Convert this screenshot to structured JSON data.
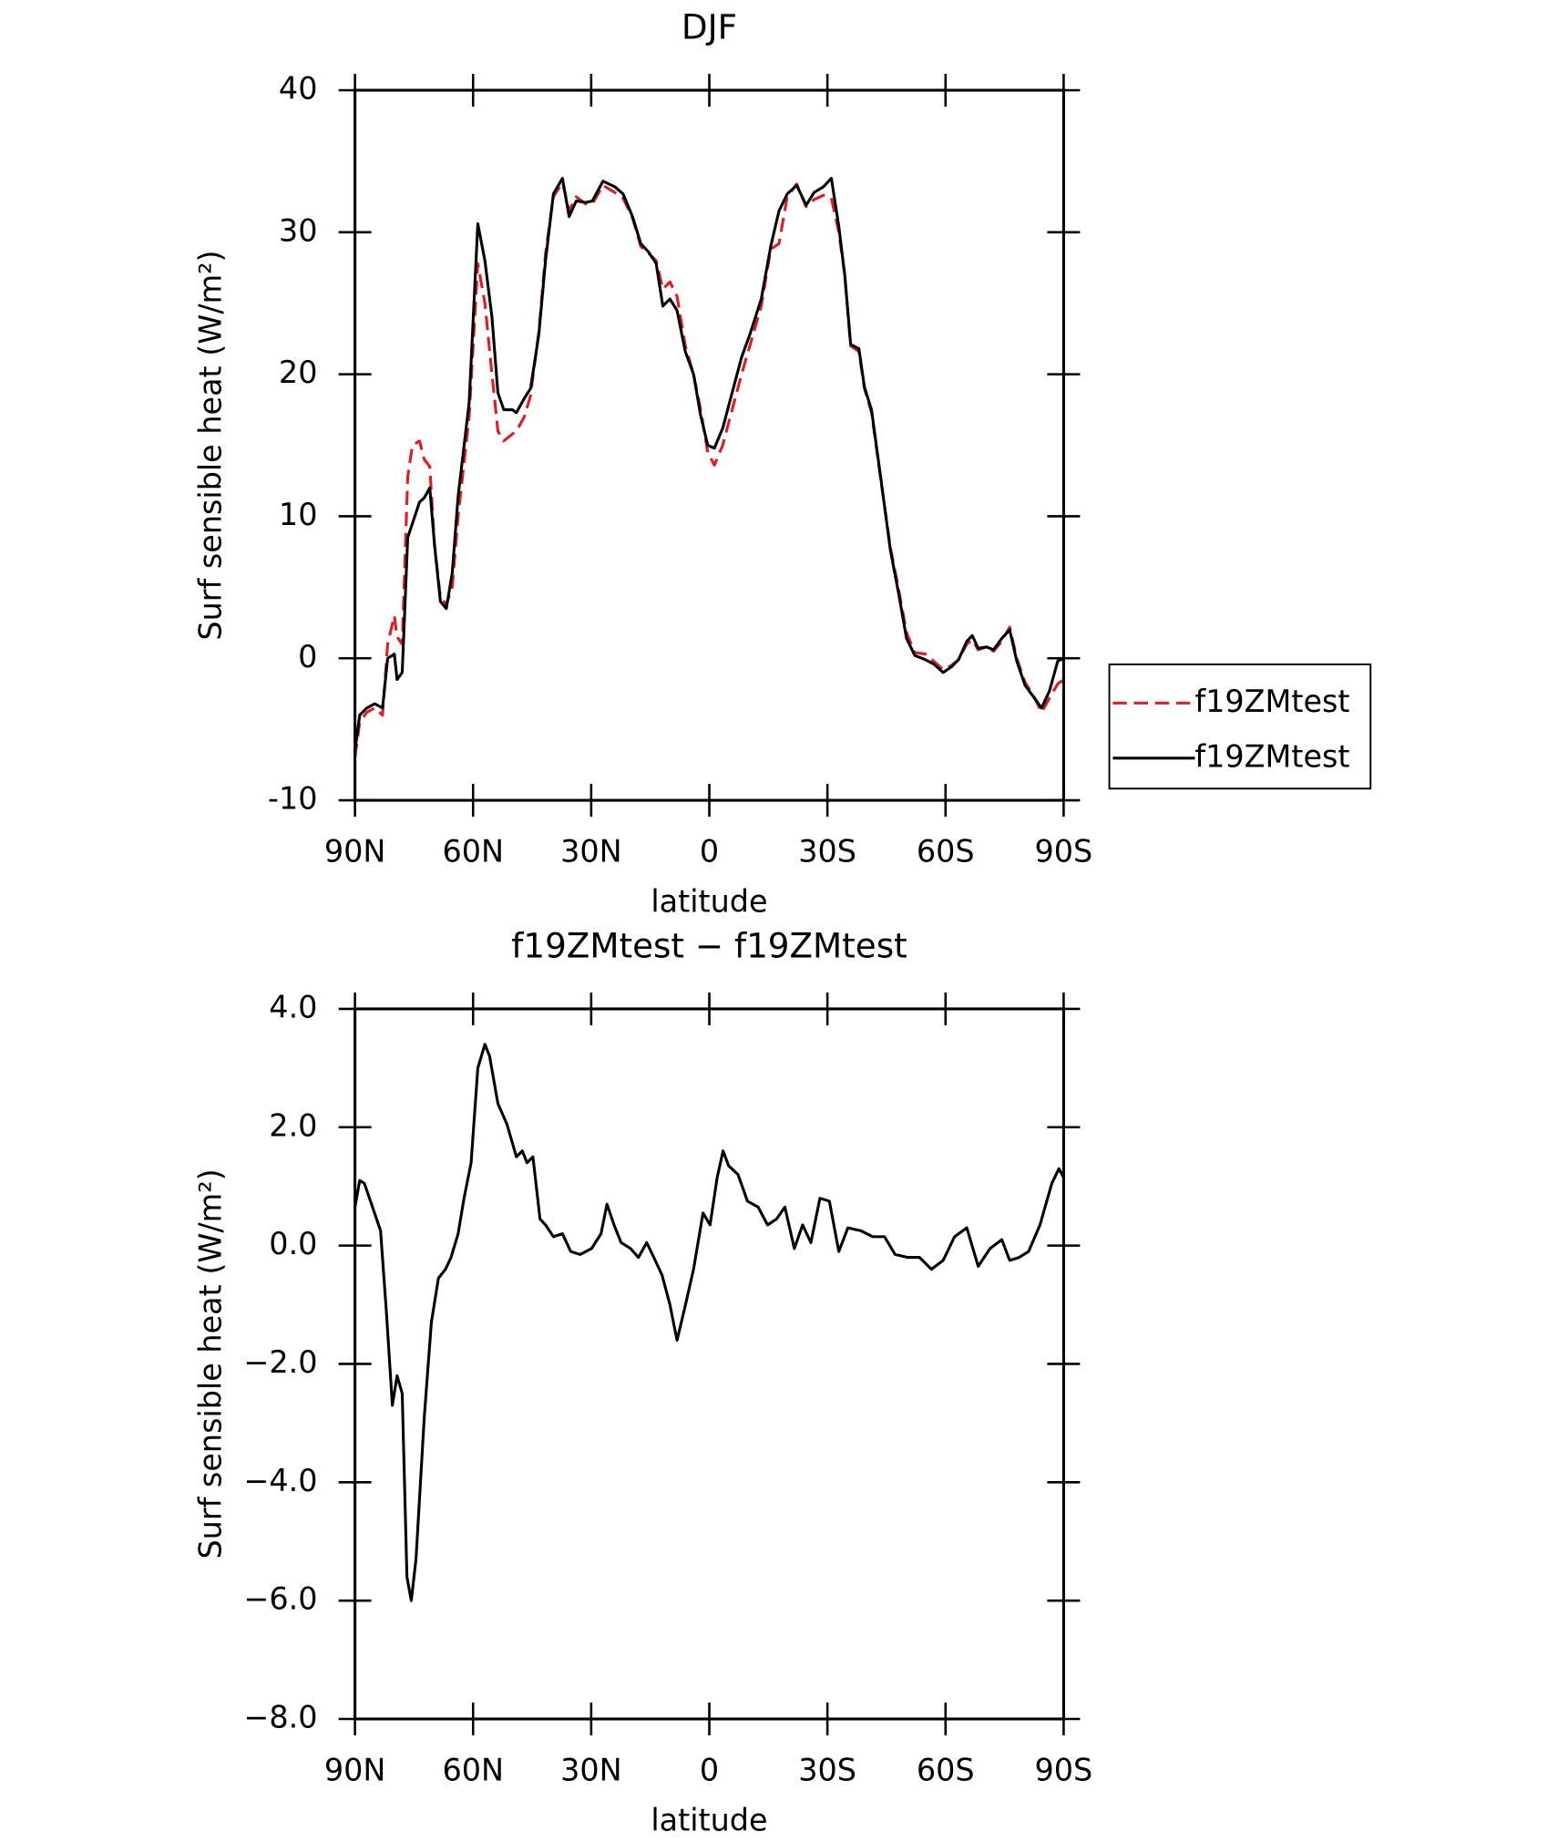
{
  "chart_data": [
    {
      "type": "line",
      "title": "DJF",
      "xlabel": "latitude",
      "ylabel": "Surf sensible heat (W/m²)",
      "x": [
        90,
        88.8,
        87,
        85,
        83,
        81.7,
        80,
        79.3,
        78,
        76.6,
        75.4,
        73.6,
        72.4,
        71,
        69.8,
        68.3,
        66.8,
        65.3,
        63.8,
        61,
        58.8,
        57,
        55.2,
        53.7,
        52.2,
        50,
        49,
        47,
        45.4,
        43.3,
        41.6,
        39.6,
        37.3,
        35.6,
        33.8,
        31.4,
        29.7,
        27,
        24,
        21.9,
        19.5,
        17.4,
        15.4,
        13.5,
        11.8,
        10,
        8.2,
        6.1,
        4,
        2.2,
        0.4,
        -1.3,
        -3.4,
        -5.8,
        -8.2,
        -10.3,
        -13.2,
        -15.6,
        -17.7,
        -19.8,
        -22.2,
        -24.6,
        -26.6,
        -29,
        -31,
        -32.9,
        -34.4,
        -35.9,
        -38,
        -39.4,
        -41.2,
        -43.6,
        -46,
        -48,
        -50.1,
        -52.2,
        -54.9,
        -57,
        -59.4,
        -61.5,
        -63.3,
        -65.4,
        -66.8,
        -68.3,
        -70.4,
        -72.2,
        -74.3,
        -76.3,
        -78.1,
        -80.2,
        -82.3,
        -84.4,
        -86.4,
        -88.5,
        -90
      ],
      "series": [
        {
          "name": "f19ZMtest",
          "color": "#e8191c",
          "dashed": true,
          "values": [
            -7,
            -4.5,
            -3.8,
            -3.5,
            -4,
            1,
            3,
            1.5,
            1,
            12.8,
            15,
            15.3,
            14,
            13.5,
            8,
            4.3,
            3.8,
            5,
            10,
            17,
            27.8,
            25,
            20,
            16,
            15.3,
            15.8,
            16,
            17,
            18.5,
            23,
            28.5,
            32.5,
            33.5,
            31.5,
            32.5,
            32,
            32,
            33.3,
            32.8,
            32.4,
            31,
            29,
            28.5,
            28,
            26,
            26.5,
            25.5,
            22,
            20,
            17.5,
            14.5,
            13.6,
            15,
            17.5,
            20,
            22,
            24.8,
            28.8,
            29.2,
            32.5,
            33.4,
            31.8,
            32.3,
            32.6,
            32.4,
            30,
            27,
            22,
            21.6,
            19,
            17.3,
            12.5,
            7.8,
            5,
            1.8,
            0.4,
            0.3,
            -0.2,
            -0.8,
            -0.5,
            -0.1,
            1,
            1.3,
            0.6,
            0.8,
            0.5,
            1.2,
            2.2,
            0,
            -1.7,
            -2.6,
            -3.8,
            -2.8,
            -1.8,
            -1.5
          ]
        },
        {
          "name": "f19ZMtest",
          "color": "#000000",
          "dashed": false,
          "values": [
            -6.5,
            -4,
            -3.5,
            -3.2,
            -3.5,
            0,
            0.3,
            -1.5,
            -1,
            8.5,
            9.5,
            11,
            11.3,
            12,
            8,
            4,
            3.5,
            6,
            11.4,
            18,
            30.6,
            28,
            24,
            18.7,
            17.5,
            17.5,
            17.3,
            18.3,
            19,
            22.8,
            28,
            32.7,
            33.8,
            31.1,
            32.2,
            32.1,
            32.2,
            33.6,
            33.2,
            32.7,
            31.1,
            29.2,
            28.6,
            27.8,
            24.8,
            25.3,
            24.5,
            21.6,
            20,
            17.1,
            15,
            14.8,
            16.2,
            18.7,
            21.2,
            22.8,
            25.3,
            29,
            31.5,
            32.7,
            33.3,
            31.9,
            32.8,
            33.2,
            33.8,
            30.4,
            27,
            22.1,
            21.8,
            19.1,
            17.5,
            12.6,
            7.6,
            4.7,
            1.4,
            0.2,
            -0.1,
            -0.4,
            -1,
            -0.6,
            -0.1,
            1.2,
            1.6,
            0.7,
            0.8,
            0.6,
            1.4,
            2,
            -0.2,
            -1.9,
            -2.7,
            -3.5,
            -2.3,
            -0.2,
            0
          ]
        }
      ],
      "xlim": [
        90,
        -90
      ],
      "xticks": [
        {
          "value": 90,
          "label": "90N"
        },
        {
          "value": 60,
          "label": "60N"
        },
        {
          "value": 30,
          "label": "30N"
        },
        0,
        {
          "value": -30,
          "label": "30S"
        },
        {
          "value": -60,
          "label": "60S"
        },
        {
          "value": -90,
          "label": "90S"
        }
      ],
      "ylim": [
        -10,
        40
      ],
      "yticks": [
        -10,
        0,
        10,
        20,
        30,
        40
      ],
      "legend": "outside-right"
    },
    {
      "type": "line",
      "title": "f19ZMtest − f19ZMtest",
      "xlabel": "latitude",
      "ylabel": "Surf sensible heat (W/m²)",
      "x": [
        90,
        88.8,
        87.6,
        85.8,
        83.5,
        82,
        80.5,
        79.3,
        78,
        76.8,
        75.7,
        74.5,
        72.4,
        70.6,
        68.8,
        67,
        65.6,
        63.8,
        62.3,
        60.5,
        58.8,
        57,
        55.8,
        53.7,
        51.4,
        49,
        47.5,
        46.3,
        44.8,
        43,
        41.6,
        39.6,
        37.3,
        35.2,
        32.8,
        29.9,
        27.5,
        26,
        24.2,
        22.4,
        20,
        18,
        15.9,
        14.1,
        12,
        10,
        8.2,
        6.4,
        4,
        1.6,
        -0.2,
        -2,
        -3.5,
        -4.9,
        -7.3,
        -9.7,
        -12.4,
        -14.8,
        -17.1,
        -19.2,
        -21.6,
        -23.7,
        -25.8,
        -28.1,
        -30.5,
        -32.9,
        -35.2,
        -38.5,
        -41.5,
        -44.5,
        -47.2,
        -50.4,
        -53.4,
        -56.4,
        -59.4,
        -62.3,
        -65.4,
        -68.3,
        -71.3,
        -74.3,
        -76.3,
        -78.7,
        -81.1,
        -84,
        -87,
        -88.8,
        -90
      ],
      "series": [
        {
          "color": "#000000",
          "dashed": false,
          "values": [
            0.65,
            1.1,
            1.05,
            0.7,
            0.25,
            -1.14,
            -2.7,
            -2.2,
            -2.5,
            -5.6,
            -6,
            -5.3,
            -2.9,
            -1.3,
            -0.55,
            -0.4,
            -0.2,
            0.2,
            0.8,
            1.4,
            3,
            3.4,
            3.2,
            2.4,
            2.05,
            1.5,
            1.6,
            1.4,
            1.5,
            0.45,
            0.35,
            0.15,
            0.2,
            -0.1,
            -0.15,
            -0.05,
            0.2,
            0.7,
            0.35,
            0.05,
            -0.05,
            -0.2,
            0.05,
            -0.2,
            -0.5,
            -1,
            -1.6,
            -1.1,
            -0.4,
            0.55,
            0.35,
            1.15,
            1.6,
            1.35,
            1.2,
            0.75,
            0.65,
            0.35,
            0.45,
            0.65,
            -0.05,
            0.35,
            0.05,
            0.8,
            0.75,
            -0.1,
            0.3,
            0.25,
            0.15,
            0.15,
            -0.15,
            -0.2,
            -0.2,
            -0.4,
            -0.25,
            0.15,
            0.3,
            -0.35,
            -0.05,
            0.1,
            -0.25,
            -0.2,
            -0.1,
            0.35,
            1.05,
            1.3,
            1.15
          ]
        }
      ],
      "xlim": [
        90,
        -90
      ],
      "xticks": [
        {
          "value": 90,
          "label": "90N"
        },
        {
          "value": 60,
          "label": "60N"
        },
        {
          "value": 30,
          "label": "30N"
        },
        0,
        {
          "value": -30,
          "label": "30S"
        },
        {
          "value": -60,
          "label": "60S"
        },
        {
          "value": -90,
          "label": "90S"
        }
      ],
      "ylim": [
        -8,
        4
      ],
      "yticks": [
        {
          "value": -8,
          "label": "−8.0"
        },
        {
          "value": -6,
          "label": "−6.0"
        },
        {
          "value": -4,
          "label": "−4.0"
        },
        {
          "value": -2,
          "label": "−2.0"
        },
        {
          "value": 0,
          "label": "0.0"
        },
        {
          "value": 2,
          "label": "2.0"
        },
        {
          "value": 4,
          "label": "4.0"
        }
      ]
    }
  ]
}
